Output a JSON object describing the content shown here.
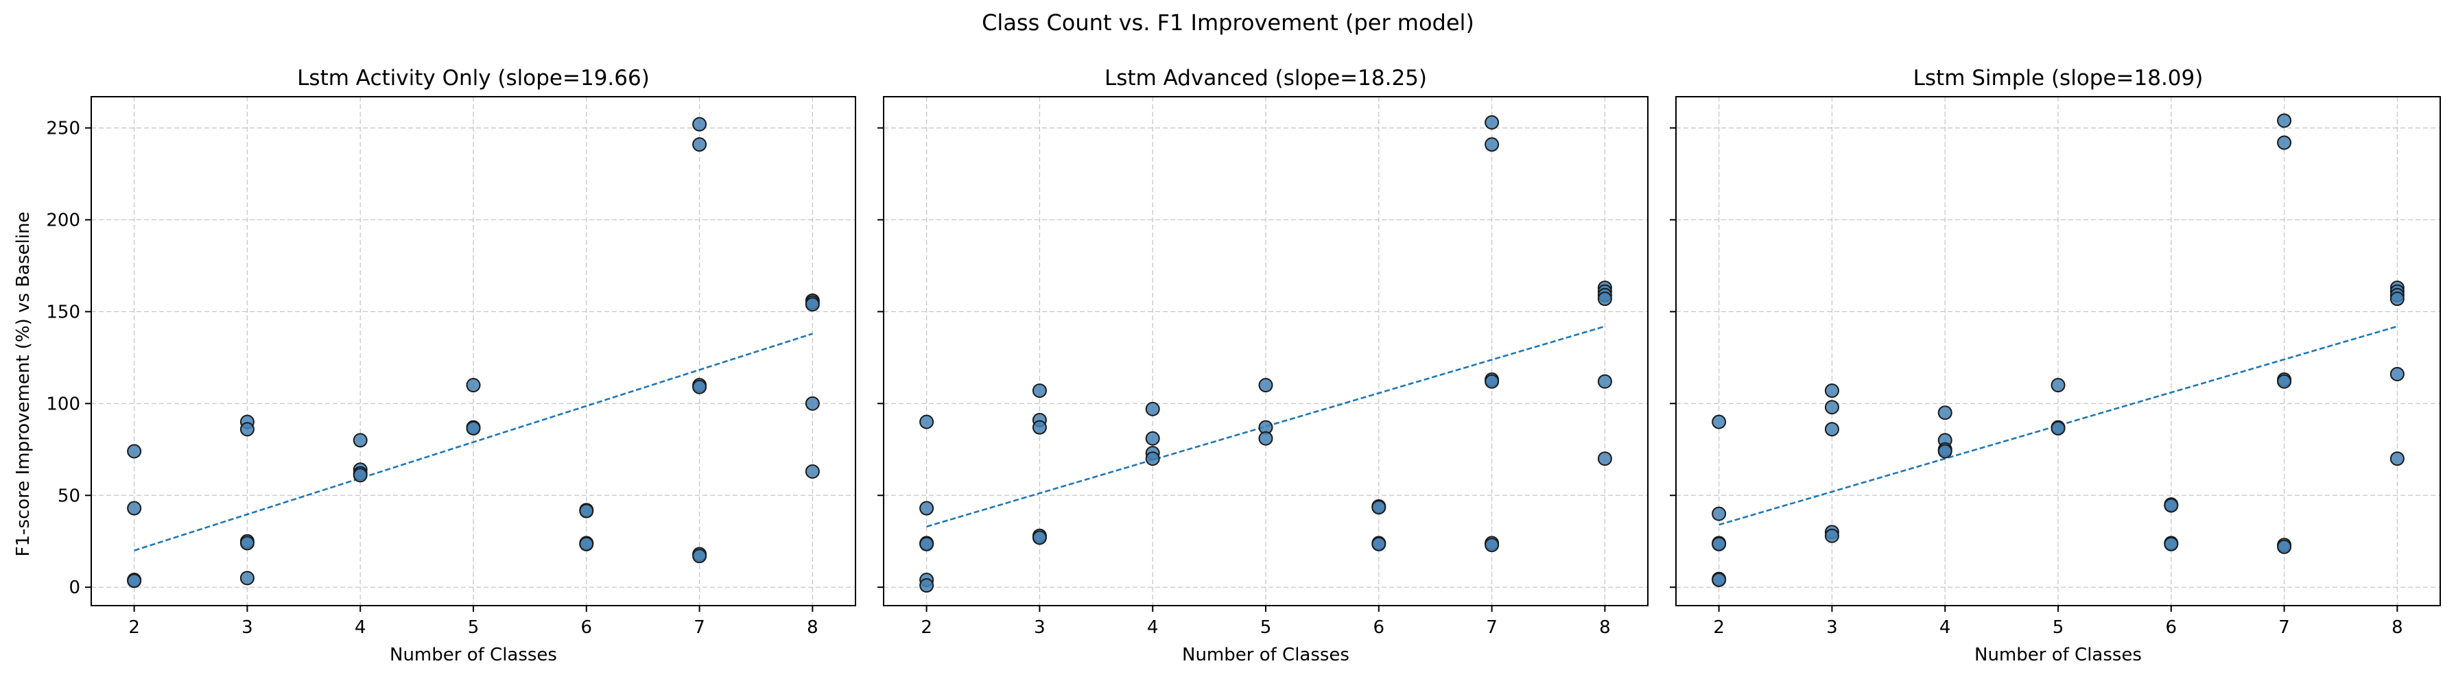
{
  "figure": {
    "suptitle": "Class Count vs. F1 Improvement (per model)",
    "shared_ylabel": "F1-score Improvement (%) vs Baseline",
    "point_color": "#4682b4",
    "point_edge_color": "#1a1a1a",
    "fit_color": "#1f77b4",
    "grid_color": "#b0b0b0"
  },
  "chart_data": [
    {
      "type": "scatter",
      "title": "Lstm Activity Only (slope=19.66)",
      "xlabel": "Number of Classes",
      "ylabel": "F1-score Improvement (%) vs Baseline",
      "xlim": [
        1.62,
        8.38
      ],
      "ylim": [
        -10,
        267
      ],
      "xticks": [
        2,
        3,
        4,
        5,
        6,
        7,
        8
      ],
      "yticks": [
        0,
        50,
        100,
        150,
        200,
        250
      ],
      "grid": true,
      "points": [
        [
          2,
          74
        ],
        [
          2,
          43
        ],
        [
          2,
          4
        ],
        [
          2,
          3.5
        ],
        [
          3,
          90
        ],
        [
          3,
          86
        ],
        [
          3,
          25
        ],
        [
          3,
          24
        ],
        [
          3,
          5
        ],
        [
          4,
          80
        ],
        [
          4,
          64
        ],
        [
          4,
          62
        ],
        [
          4,
          61
        ],
        [
          5,
          110
        ],
        [
          5,
          87
        ],
        [
          5,
          86.5
        ],
        [
          6,
          42
        ],
        [
          6,
          41.5
        ],
        [
          6,
          24
        ],
        [
          6,
          23.5
        ],
        [
          7,
          252
        ],
        [
          7,
          241
        ],
        [
          7,
          110
        ],
        [
          7,
          109
        ],
        [
          7,
          18
        ],
        [
          7,
          17
        ],
        [
          8,
          156
        ],
        [
          8,
          155
        ],
        [
          8,
          154
        ],
        [
          8,
          100
        ],
        [
          8,
          63
        ]
      ],
      "trendline": {
        "slope": 19.66,
        "x": [
          2,
          8
        ],
        "y": [
          20,
          138
        ]
      }
    },
    {
      "type": "scatter",
      "title": "Lstm Advanced (slope=18.25)",
      "xlabel": "Number of Classes",
      "ylabel": "",
      "xlim": [
        1.62,
        8.38
      ],
      "ylim": [
        -10,
        267
      ],
      "xticks": [
        2,
        3,
        4,
        5,
        6,
        7,
        8
      ],
      "yticks": [
        0,
        50,
        100,
        150,
        200,
        250
      ],
      "grid": true,
      "points": [
        [
          2,
          90
        ],
        [
          2,
          43
        ],
        [
          2,
          24
        ],
        [
          2,
          23.5
        ],
        [
          2,
          4
        ],
        [
          2,
          1
        ],
        [
          3,
          107
        ],
        [
          3,
          91
        ],
        [
          3,
          87
        ],
        [
          3,
          28
        ],
        [
          3,
          27
        ],
        [
          4,
          97
        ],
        [
          4,
          81
        ],
        [
          4,
          73
        ],
        [
          4,
          70
        ],
        [
          5,
          110
        ],
        [
          5,
          87
        ],
        [
          5,
          81
        ],
        [
          6,
          44
        ],
        [
          6,
          43.5
        ],
        [
          6,
          24
        ],
        [
          6,
          23.5
        ],
        [
          7,
          253
        ],
        [
          7,
          241
        ],
        [
          7,
          113
        ],
        [
          7,
          112
        ],
        [
          7,
          24
        ],
        [
          7,
          23
        ],
        [
          8,
          163
        ],
        [
          8,
          161
        ],
        [
          8,
          159
        ],
        [
          8,
          157
        ],
        [
          8,
          112
        ],
        [
          8,
          70
        ]
      ],
      "trendline": {
        "slope": 18.25,
        "x": [
          2,
          8
        ],
        "y": [
          33,
          142
        ]
      }
    },
    {
      "type": "scatter",
      "title": "Lstm Simple (slope=18.09)",
      "xlabel": "Number of Classes",
      "ylabel": "",
      "xlim": [
        1.62,
        8.38
      ],
      "ylim": [
        -10,
        267
      ],
      "xticks": [
        2,
        3,
        4,
        5,
        6,
        7,
        8
      ],
      "yticks": [
        0,
        50,
        100,
        150,
        200,
        250
      ],
      "grid": true,
      "points": [
        [
          2,
          90
        ],
        [
          2,
          40
        ],
        [
          2,
          24
        ],
        [
          2,
          23.5
        ],
        [
          2,
          4.5
        ],
        [
          2,
          4
        ],
        [
          3,
          107
        ],
        [
          3,
          98
        ],
        [
          3,
          86
        ],
        [
          3,
          30
        ],
        [
          3,
          28
        ],
        [
          4,
          95
        ],
        [
          4,
          80
        ],
        [
          4,
          75
        ],
        [
          4,
          74
        ],
        [
          5,
          110
        ],
        [
          5,
          87
        ],
        [
          5,
          86.5
        ],
        [
          6,
          45
        ],
        [
          6,
          44.5
        ],
        [
          6,
          24
        ],
        [
          6,
          23.5
        ],
        [
          7,
          254
        ],
        [
          7,
          242
        ],
        [
          7,
          113
        ],
        [
          7,
          112
        ],
        [
          7,
          23
        ],
        [
          7,
          22
        ],
        [
          8,
          163
        ],
        [
          8,
          161
        ],
        [
          8,
          159
        ],
        [
          8,
          157
        ],
        [
          8,
          116
        ],
        [
          8,
          70
        ]
      ],
      "trendline": {
        "slope": 18.09,
        "x": [
          2,
          8
        ],
        "y": [
          34,
          142
        ]
      }
    }
  ]
}
